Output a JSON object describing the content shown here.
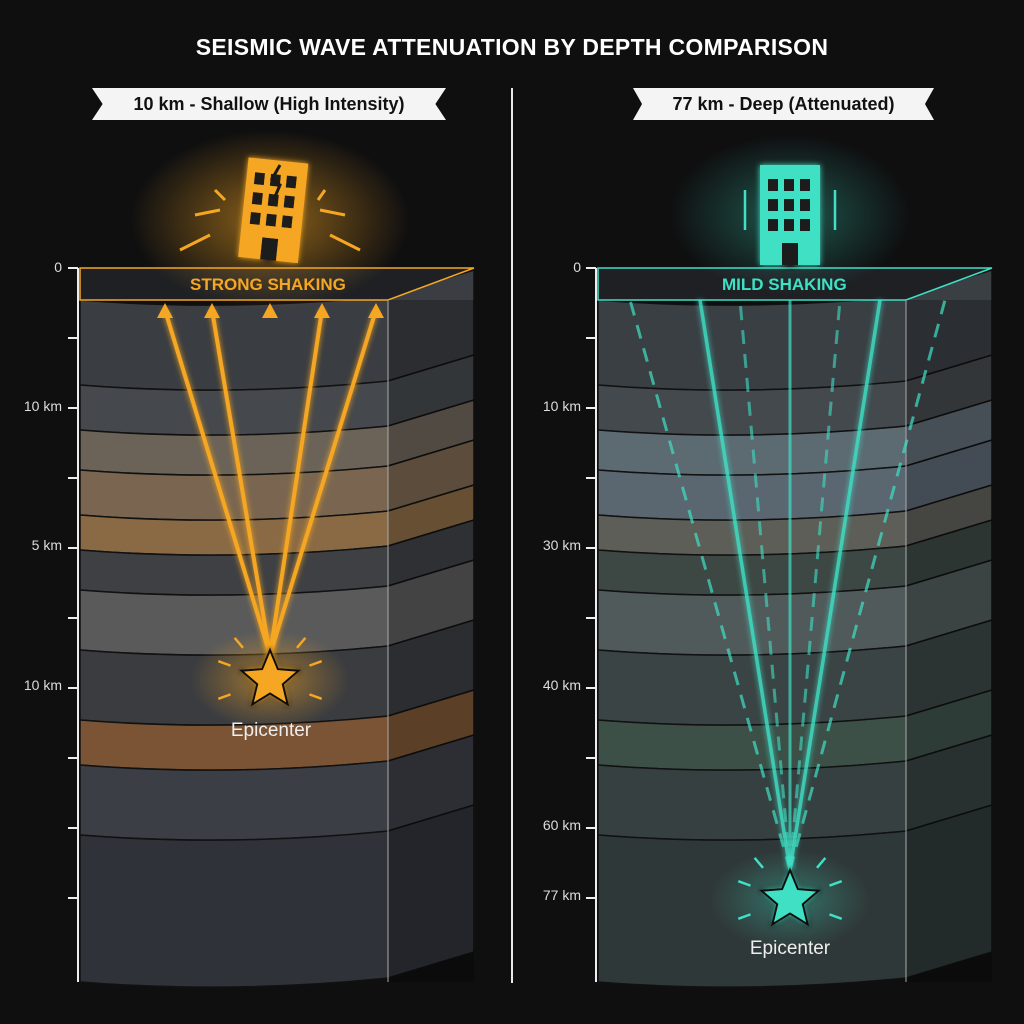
{
  "title": "SEISMIC WAVE ATTENUATION BY DEPTH COMPARISON",
  "panels": [
    {
      "banner": "10 km - Shallow (High Intensity)",
      "shaking": "STRONG SHAKING",
      "epicenter": "Epicenter",
      "accent": "#f5a623",
      "axis_labels": [
        "0",
        "10 km",
        "5 km",
        "10 km"
      ],
      "icon": "cracked-building-icon"
    },
    {
      "banner": "77 km - Deep (Attenuated)",
      "shaking": "MILD SHAKING",
      "epicenter": "Epicenter",
      "accent": "#3fe0c5",
      "axis_labels": [
        "0",
        "10 km",
        "30 km",
        "40 km",
        "60 km",
        "77 km"
      ],
      "icon": "building-icon"
    }
  ]
}
